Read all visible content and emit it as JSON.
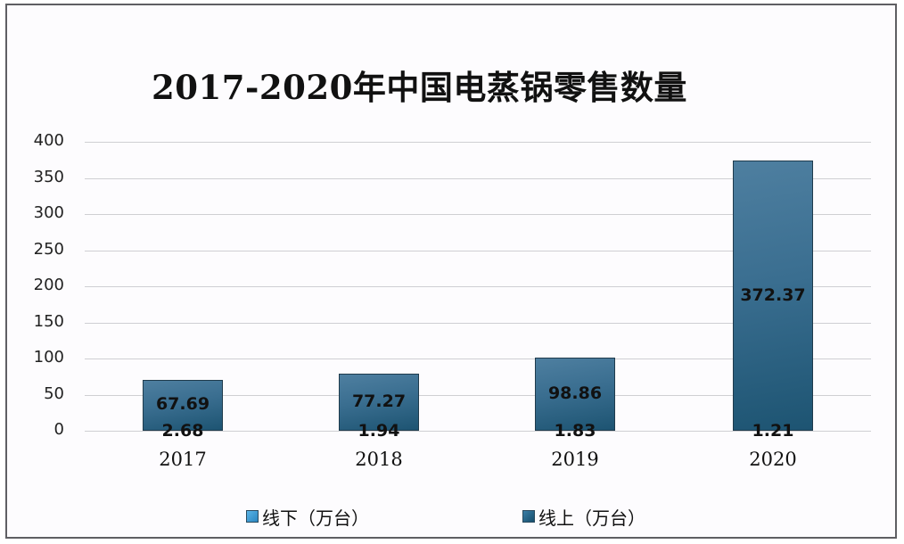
{
  "title": "2017-2020年中国电蒸锅零售数量",
  "colors": {
    "offline": "#3a9ad0",
    "online": "#1e5a7a",
    "bar_top": "#4e7fa0",
    "bar_bottom": "#1d5472"
  },
  "legend": [
    {
      "label": "线下（万台）",
      "color": "#3a9ad0"
    },
    {
      "label": "线上（万台）",
      "color": "#1e5a7a"
    }
  ],
  "y_ticks": [
    "400",
    "350",
    "300",
    "250",
    "200",
    "150",
    "100",
    "50",
    "0"
  ],
  "x_ticks": [
    "2017",
    "2018",
    "2019",
    "2020"
  ],
  "bar_labels": {
    "offline": [
      "67.69",
      "77.27",
      "98.86",
      "372.37"
    ],
    "online": [
      "2.68",
      "1.94",
      "1.83",
      "1.21"
    ]
  },
  "chart_data": {
    "type": "bar",
    "title": "2017-2020年中国电蒸锅零售数量",
    "categories": [
      "2017",
      "2018",
      "2019",
      "2020"
    ],
    "series": [
      {
        "name": "线下（万台）",
        "values": [
          67.69,
          77.27,
          98.86,
          372.37
        ]
      },
      {
        "name": "线上（万台）",
        "values": [
          2.68,
          1.94,
          1.83,
          1.21
        ]
      }
    ],
    "xlabel": "",
    "ylabel": "",
    "ylim": [
      0,
      400
    ],
    "y_ticks": [
      0,
      50,
      100,
      150,
      200,
      250,
      300,
      350,
      400
    ],
    "grid": true,
    "legend_position": "bottom",
    "stacked": true
  }
}
